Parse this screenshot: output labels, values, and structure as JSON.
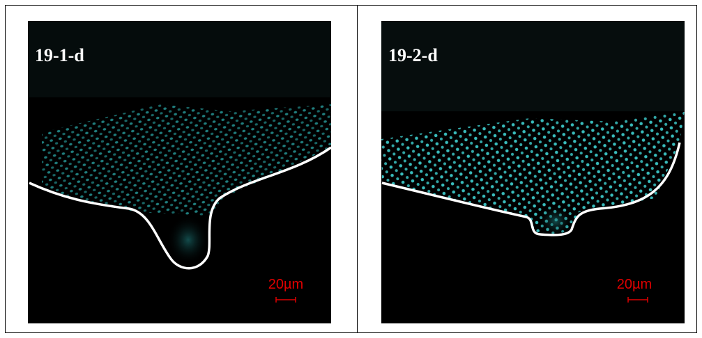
{
  "panels": [
    {
      "label": "19-1-d",
      "scale": "20µm"
    },
    {
      "label": "19-2-d",
      "scale": "20µm"
    }
  ]
}
